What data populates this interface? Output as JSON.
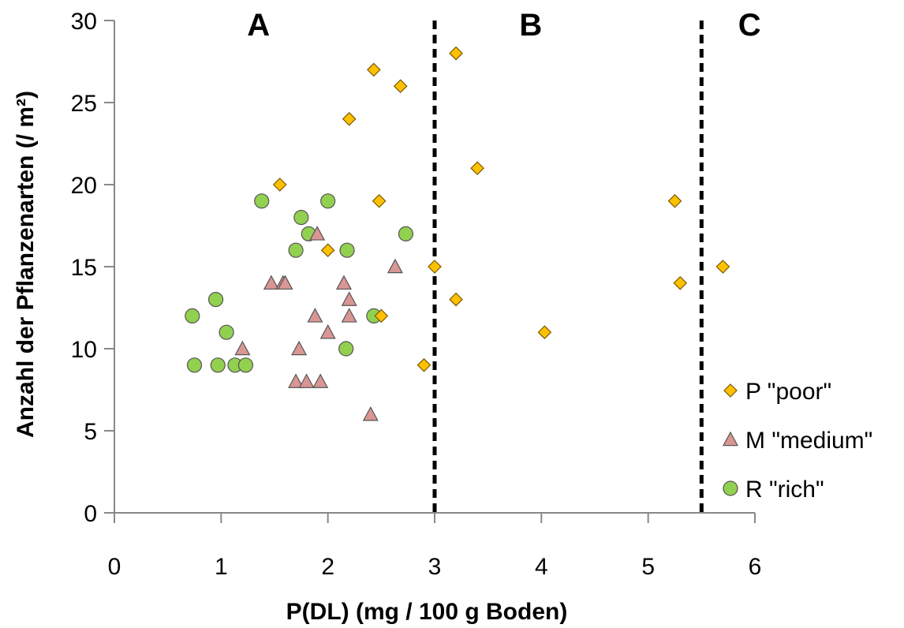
{
  "chart_data": {
    "type": "scatter",
    "title": "",
    "xlabel": "P(DL) (mg / 100 g Boden)",
    "ylabel": "Anzahl der Pflanzenarten (/ m²)",
    "xlim": [
      0,
      6
    ],
    "ylim": [
      0,
      30
    ],
    "xticks": [
      0,
      1,
      2,
      3,
      4,
      5,
      6
    ],
    "yticks": [
      0,
      5,
      10,
      15,
      20,
      25,
      30
    ],
    "xtick_labels": [
      "0",
      "1",
      "2",
      "3",
      "4",
      "5",
      "6"
    ],
    "ytick_labels": [
      "0",
      "5",
      "10",
      "15",
      "20",
      "25",
      "30"
    ],
    "grid": false,
    "legend_position": "right",
    "reference_lines": [
      {
        "axis": "x",
        "value": 3.0,
        "style": "dashed"
      },
      {
        "axis": "x",
        "value": 5.5,
        "style": "dashed"
      }
    ],
    "region_labels": [
      {
        "text": "A",
        "x": 1.35
      },
      {
        "text": "B",
        "x": 3.9
      },
      {
        "text": "C",
        "x": 5.95
      }
    ],
    "series": [
      {
        "name": "P \"poor\"",
        "marker": "diamond",
        "color": "#FFC000",
        "x": [
          1.55,
          2.43,
          2.68,
          2.2,
          3.2,
          3.4,
          2.48,
          2.0,
          3.0,
          3.2,
          2.5,
          2.9,
          4.03,
          5.25,
          5.3,
          5.7
        ],
        "y": [
          20,
          27,
          26,
          24,
          28,
          21,
          19,
          16,
          15,
          13,
          12,
          9,
          11,
          19,
          14,
          15
        ]
      },
      {
        "name": "M \"medium\"",
        "marker": "triangle",
        "color": "#D99694",
        "x": [
          1.2,
          1.47,
          1.58,
          1.6,
          1.7,
          1.73,
          1.8,
          1.88,
          1.9,
          1.93,
          2.0,
          2.15,
          2.2,
          2.2,
          2.4,
          2.63
        ],
        "y": [
          10,
          14,
          14,
          14,
          8,
          10,
          8,
          12,
          17,
          8,
          11,
          14,
          13,
          12,
          6,
          15
        ]
      },
      {
        "name": "R \"rich\"",
        "marker": "circle",
        "color": "#92D050",
        "x": [
          0.73,
          0.75,
          0.95,
          0.97,
          1.05,
          1.13,
          1.23,
          1.38,
          1.7,
          1.75,
          1.82,
          2.0,
          2.18,
          2.17,
          2.43,
          2.73
        ],
        "y": [
          12,
          9,
          13,
          9,
          11,
          9,
          9,
          19,
          16,
          18,
          17,
          19,
          16,
          10,
          12,
          17
        ]
      }
    ]
  }
}
